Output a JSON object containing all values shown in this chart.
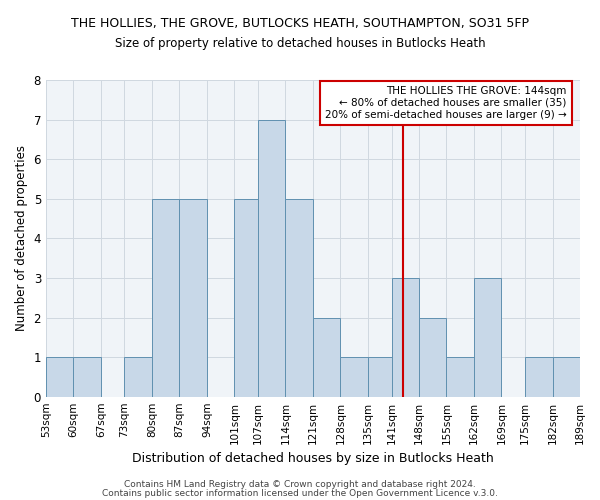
{
  "title": "THE HOLLIES, THE GROVE, BUTLOCKS HEATH, SOUTHAMPTON, SO31 5FP",
  "subtitle": "Size of property relative to detached houses in Butlocks Heath",
  "xlabel": "Distribution of detached houses by size in Butlocks Heath",
  "ylabel": "Number of detached properties",
  "bin_edges": [
    53,
    60,
    67,
    73,
    80,
    87,
    94,
    101,
    107,
    114,
    121,
    128,
    135,
    141,
    148,
    155,
    162,
    169,
    175,
    182,
    189
  ],
  "bar_heights": [
    1,
    1,
    0,
    1,
    5,
    5,
    0,
    5,
    7,
    5,
    2,
    1,
    1,
    3,
    2,
    1,
    3,
    0,
    1,
    1
  ],
  "bar_color": "#c8d8e8",
  "bar_edge_color": "#6090b0",
  "reference_line_x": 144,
  "annotation_title": "THE HOLLIES THE GROVE: 144sqm",
  "annotation_line1": "← 80% of detached houses are smaller (35)",
  "annotation_line2": "20% of semi-detached houses are larger (9) →",
  "annotation_box_color": "#cc0000",
  "ylim": [
    0,
    8
  ],
  "yticks": [
    0,
    1,
    2,
    3,
    4,
    5,
    6,
    7,
    8
  ],
  "footer1": "Contains HM Land Registry data © Crown copyright and database right 2024.",
  "footer2": "Contains public sector information licensed under the Open Government Licence v.3.0.",
  "tick_labels": [
    "53sqm",
    "60sqm",
    "67sqm",
    "73sqm",
    "80sqm",
    "87sqm",
    "94sqm",
    "101sqm",
    "107sqm",
    "114sqm",
    "121sqm",
    "128sqm",
    "135sqm",
    "141sqm",
    "148sqm",
    "155sqm",
    "162sqm",
    "169sqm",
    "175sqm",
    "182sqm",
    "189sqm"
  ],
  "title_fontsize": 9,
  "subtitle_fontsize": 8.5,
  "xlabel_fontsize": 9,
  "ylabel_fontsize": 8.5,
  "tick_fontsize": 7.5,
  "ytick_fontsize": 8.5,
  "footer_fontsize": 6.5,
  "annotation_fontsize": 7.5,
  "bg_color": "#f0f4f8"
}
